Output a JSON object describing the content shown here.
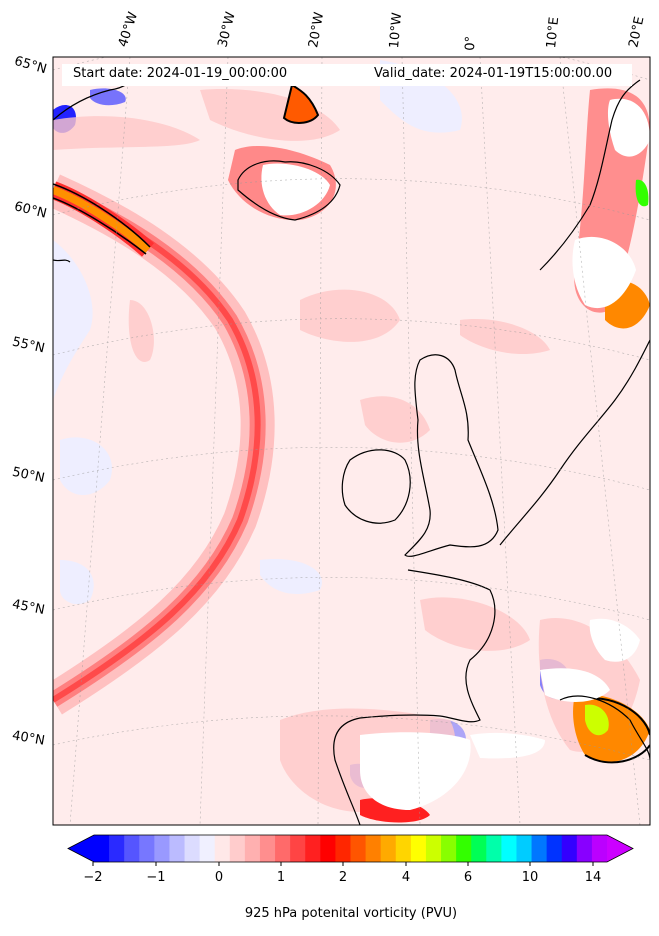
{
  "header": {
    "start_date": "Start date: 2024-01-19_00:00:00",
    "valid_date": "Valid_date: 2024-01-19T15:00:00.00"
  },
  "longitude_labels": [
    "40°W",
    "30°W",
    "20°W",
    "10°W",
    "0°",
    "10°E",
    "20°E"
  ],
  "latitude_labels": [
    "65°N",
    "60°N",
    "55°N",
    "50°N",
    "45°N",
    "40°N"
  ],
  "colorbar": {
    "label": "925 hPa potenital vorticity (PVU)",
    "tick_labels": [
      "−2",
      "−1",
      "0",
      "1",
      "2",
      "4",
      "6",
      "10",
      "14"
    ],
    "colors": [
      "#0000ff",
      "#2a2aff",
      "#5555ff",
      "#7777ff",
      "#9999ff",
      "#bbbbff",
      "#dcdcff",
      "#f0f0ff",
      "#ffe8e8",
      "#ffcccc",
      "#ffb0b0",
      "#ff8e8e",
      "#ff6a6a",
      "#ff4444",
      "#ff2020",
      "#ff0000",
      "#ff2600",
      "#ff5500",
      "#ff8000",
      "#ffaa00",
      "#ffd500",
      "#ffff00",
      "#ccff00",
      "#88ff00",
      "#33ff00",
      "#00ff55",
      "#00ffaa",
      "#00ffff",
      "#00ccff",
      "#0077ff",
      "#0033ff",
      "#3300ff",
      "#8800ff",
      "#bb00ff"
    ],
    "under_color": "#0000ff",
    "over_color": "#cc00ff"
  },
  "map": {
    "background_fill": "#ffecec",
    "land_outline_color": "#000000",
    "no_data_fill": "#ffffff"
  }
}
